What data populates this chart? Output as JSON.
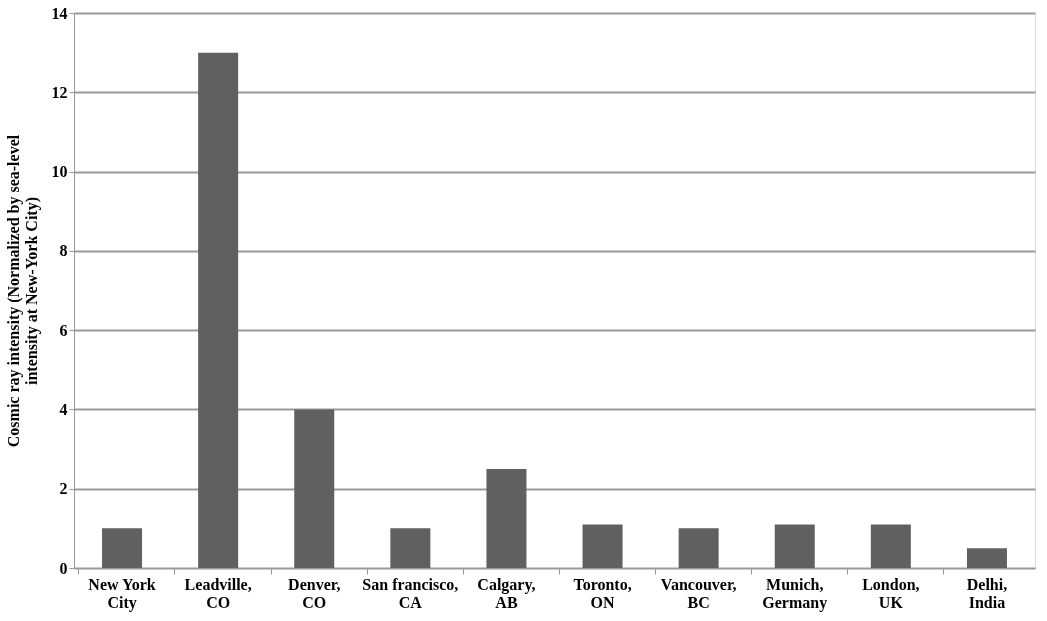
{
  "chart_data": {
    "type": "bar",
    "ylabel": "Cosmic ray intensity (Normalized by sea-level\nintensity at New-York City)",
    "categories": [
      "New York\nCity",
      "Leadville,\nCO",
      "Denver,\nCO",
      "San francisco,\nCA",
      "Calgary,\nAB",
      "Toronto,\nON",
      "Vancouver,\nBC",
      "Munich,\nGermany",
      "London,\nUK",
      "Delhi,\nIndia"
    ],
    "values": [
      1,
      13,
      4,
      1,
      2.5,
      1.1,
      1,
      1.1,
      1.1,
      0.5
    ],
    "color": "#606060",
    "ylim": [
      0,
      14
    ],
    "yticks": [
      0,
      2,
      4,
      6,
      8,
      10,
      12,
      14
    ],
    "grid": "y"
  }
}
